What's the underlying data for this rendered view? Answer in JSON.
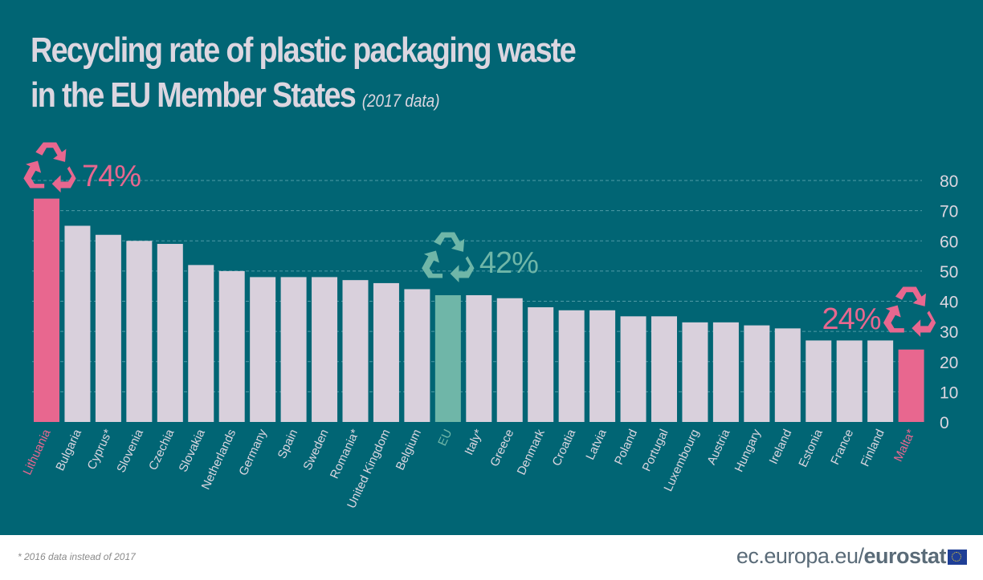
{
  "header": {
    "title_line1": "Recycling rate of plastic packaging waste",
    "title_line2": "in the EU Member States",
    "subtitle": "(2017 data)"
  },
  "chart_data": {
    "type": "bar",
    "title": "Recycling rate of plastic packaging waste in the EU Member States",
    "subtitle": "(2017 data)",
    "xlabel": "",
    "ylabel": "",
    "ylim": [
      0,
      80
    ],
    "yticks": [
      0,
      10,
      20,
      30,
      40,
      50,
      60,
      70,
      80
    ],
    "grid": true,
    "categories": [
      "Lithuania",
      "Bulgaria",
      "Cyprus*",
      "Slovenia",
      "Czechia",
      "Slovakia",
      "Netherlands",
      "Germany",
      "Spain",
      "Sweden",
      "Romania*",
      "United Kingdom",
      "Belgium",
      "EU",
      "Italy*",
      "Greece",
      "Denmark",
      "Croatia",
      "Latvia",
      "Poland",
      "Portugal",
      "Luxembourg",
      "Austria",
      "Hungary",
      "Ireland",
      "Estonia",
      "France",
      "Finland",
      "Malta*"
    ],
    "values": [
      74,
      65,
      62,
      60,
      59,
      52,
      50,
      48,
      48,
      48,
      47,
      46,
      44,
      42,
      42,
      41,
      38,
      37,
      37,
      35,
      35,
      33,
      33,
      32,
      31,
      27,
      27,
      27,
      24
    ],
    "highlights": {
      "Lithuania": "pink",
      "EU": "green",
      "Malta*": "pink"
    },
    "annotations": [
      {
        "category": "Lithuania",
        "text": "74%",
        "icon": "recycle-icon"
      },
      {
        "category": "EU",
        "text": "42%",
        "icon": "recycle-icon"
      },
      {
        "category": "Malta*",
        "text": "24%",
        "icon": "recycle-icon"
      }
    ],
    "colors": {
      "background": "#016574",
      "bar": "#d9d0dc",
      "highlight_pink": "#e8678f",
      "highlight_green": "#6fb6a8",
      "grid": "#4f9aa6",
      "tick_text": "#dcd6e0"
    }
  },
  "footer": {
    "footnote": "* 2016 data instead of 2017",
    "brand_prefix": "ec.europa.eu/",
    "brand_name": "eurostat"
  }
}
